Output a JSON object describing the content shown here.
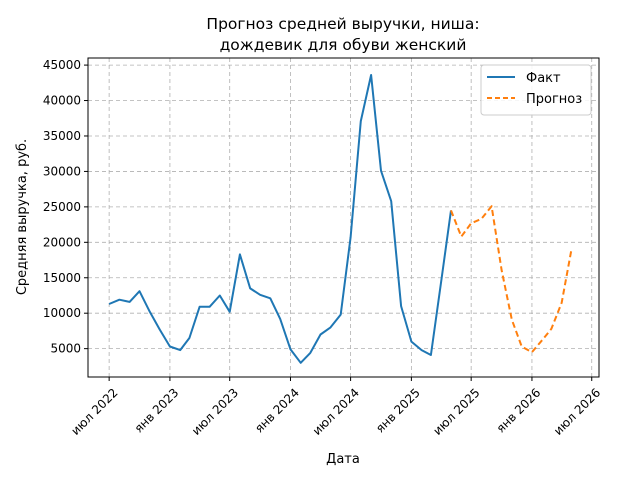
{
  "chart_data": {
    "type": "line",
    "title": "Прогноз средней выручки, ниша:",
    "subtitle": "дождевик для обуви женский",
    "xlabel": "Дата",
    "ylabel": "Средняя выручка, руб.",
    "x_ticks": [
      "июл 2022",
      "янв 2023",
      "июл 2023",
      "янв 2024",
      "июл 2024",
      "янв 2025",
      "июл 2025",
      "янв 2026",
      "июл 2026"
    ],
    "y_ticks": [
      5000,
      10000,
      15000,
      20000,
      25000,
      30000,
      35000,
      40000,
      45000
    ],
    "xlim": [
      "2022-04-28",
      "2026-07-23"
    ],
    "ylim": [
      1000,
      46000
    ],
    "grid": true,
    "legend_position": "top-right",
    "series": [
      {
        "name": "Факт",
        "color": "#1f77b4",
        "style": "solid",
        "x": [
          "2022-07-01",
          "2022-08-01",
          "2022-09-01",
          "2022-10-01",
          "2022-11-01",
          "2022-12-01",
          "2023-01-01",
          "2023-02-01",
          "2023-03-01",
          "2023-04-01",
          "2023-05-01",
          "2023-06-01",
          "2023-07-01",
          "2023-08-01",
          "2023-09-01",
          "2023-10-01",
          "2023-11-01",
          "2023-12-01",
          "2024-01-01",
          "2024-02-01",
          "2024-03-01",
          "2024-04-01",
          "2024-05-01",
          "2024-06-01",
          "2024-07-01",
          "2024-08-01",
          "2024-09-01",
          "2024-10-01",
          "2024-11-01",
          "2024-12-01",
          "2025-01-01",
          "2025-02-01",
          "2025-03-01",
          "2025-04-01",
          "2025-05-01"
        ],
        "values": [
          11300,
          11900,
          11600,
          13100,
          10200,
          7700,
          5300,
          4800,
          6500,
          10900,
          10900,
          12500,
          10200,
          18300,
          13500,
          12600,
          12100,
          9200,
          4900,
          3000,
          4400,
          7000,
          8000,
          9800,
          20700,
          37100,
          43600,
          30100,
          25800,
          11000,
          6000,
          4800,
          4100,
          14400,
          24500
        ]
      },
      {
        "name": "Прогноз",
        "color": "#ff7f0e",
        "style": "dashed",
        "x": [
          "2025-05-01",
          "2025-06-01",
          "2025-07-01",
          "2025-08-01",
          "2025-09-01",
          "2025-10-01",
          "2025-11-01",
          "2025-12-01",
          "2026-01-01",
          "2026-02-01",
          "2026-03-01",
          "2026-04-01",
          "2026-05-01"
        ],
        "values": [
          24500,
          20800,
          22700,
          23300,
          25100,
          16100,
          9100,
          5300,
          4500,
          6200,
          7800,
          11500,
          19100
        ]
      }
    ]
  }
}
